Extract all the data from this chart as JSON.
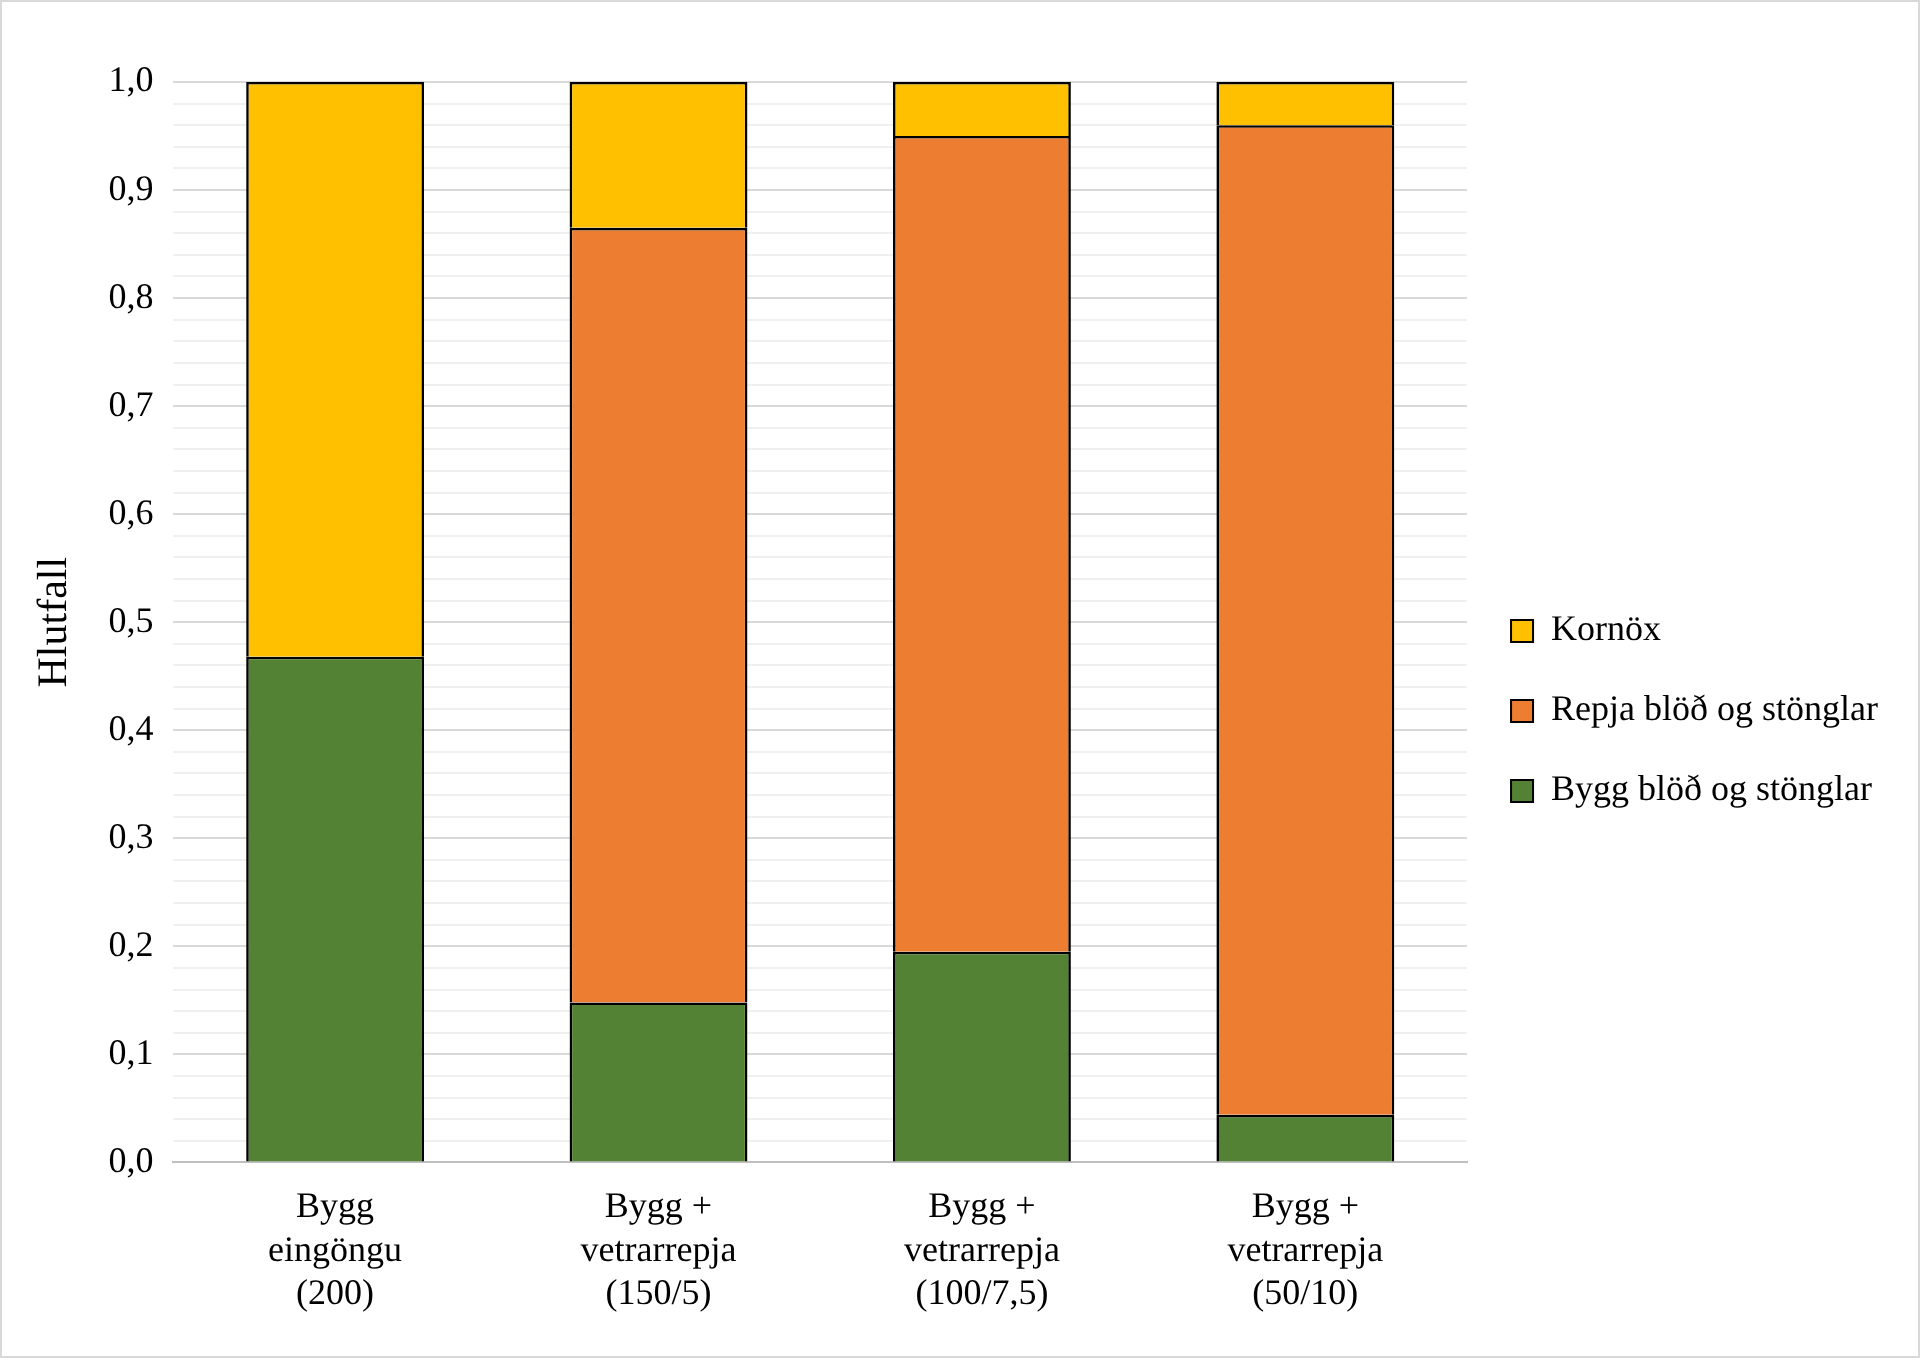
{
  "chart_data": {
    "type": "bar",
    "stacked": true,
    "ylabel": "Hlutfall",
    "categories": [
      "Bygg\neingöngu\n(200)",
      "Bygg +\nvetrarrepja\n(150/5)",
      "Bygg +\nvetrarrepja\n(100/7,5)",
      "Bygg +\nvetrarrepja\n(50/10)"
    ],
    "series": [
      {
        "name": "Bygg blöð og stönglar",
        "color": "#548235",
        "values": [
          0.468,
          0.148,
          0.195,
          0.044
        ]
      },
      {
        "name": "Repja blöð og stönglar",
        "color": "#ed7d31",
        "values": [
          0,
          0.717,
          0.755,
          0.916
        ]
      },
      {
        "name": "Kornöx",
        "color": "#ffc000",
        "values": [
          0.532,
          0.135,
          0.05,
          0.04
        ]
      }
    ],
    "ylim": [
      0,
      1
    ],
    "yticks": [
      {
        "value": 0,
        "label": "0,0"
      },
      {
        "value": 0.02,
        "label": null
      },
      {
        "value": 0.04,
        "label": null
      },
      {
        "value": 0.06,
        "label": null
      },
      {
        "value": 0.08,
        "label": null
      },
      {
        "value": 0.1,
        "label": "0,1"
      },
      {
        "value": 0.12,
        "label": null
      },
      {
        "value": 0.14,
        "label": null
      },
      {
        "value": 0.16,
        "label": null
      },
      {
        "value": 0.18,
        "label": null
      },
      {
        "value": 0.2,
        "label": "0,2"
      },
      {
        "value": 0.22,
        "label": null
      },
      {
        "value": 0.24,
        "label": null
      },
      {
        "value": 0.26,
        "label": null
      },
      {
        "value": 0.28,
        "label": null
      },
      {
        "value": 0.3,
        "label": "0,3"
      },
      {
        "value": 0.32,
        "label": null
      },
      {
        "value": 0.34,
        "label": null
      },
      {
        "value": 0.36,
        "label": null
      },
      {
        "value": 0.38,
        "label": null
      },
      {
        "value": 0.4,
        "label": "0,4"
      },
      {
        "value": 0.42,
        "label": null
      },
      {
        "value": 0.44,
        "label": null
      },
      {
        "value": 0.46,
        "label": null
      },
      {
        "value": 0.48,
        "label": null
      },
      {
        "value": 0.5,
        "label": "0,5"
      },
      {
        "value": 0.52,
        "label": null
      },
      {
        "value": 0.54,
        "label": null
      },
      {
        "value": 0.56,
        "label": null
      },
      {
        "value": 0.58,
        "label": null
      },
      {
        "value": 0.6,
        "label": "0,6"
      },
      {
        "value": 0.62,
        "label": null
      },
      {
        "value": 0.64,
        "label": null
      },
      {
        "value": 0.66,
        "label": null
      },
      {
        "value": 0.68,
        "label": null
      },
      {
        "value": 0.7,
        "label": "0,7"
      },
      {
        "value": 0.72,
        "label": null
      },
      {
        "value": 0.74,
        "label": null
      },
      {
        "value": 0.76,
        "label": null
      },
      {
        "value": 0.78,
        "label": null
      },
      {
        "value": 0.8,
        "label": "0,8"
      },
      {
        "value": 0.82,
        "label": null
      },
      {
        "value": 0.84,
        "label": null
      },
      {
        "value": 0.86,
        "label": null
      },
      {
        "value": 0.88,
        "label": null
      },
      {
        "value": 0.9,
        "label": "0,9"
      },
      {
        "value": 0.92,
        "label": null
      },
      {
        "value": 0.94,
        "label": null
      },
      {
        "value": 0.96,
        "label": null
      },
      {
        "value": 0.98,
        "label": null
      },
      {
        "value": 1,
        "label": "1,0"
      }
    ],
    "grid": "y",
    "legend": "right"
  }
}
